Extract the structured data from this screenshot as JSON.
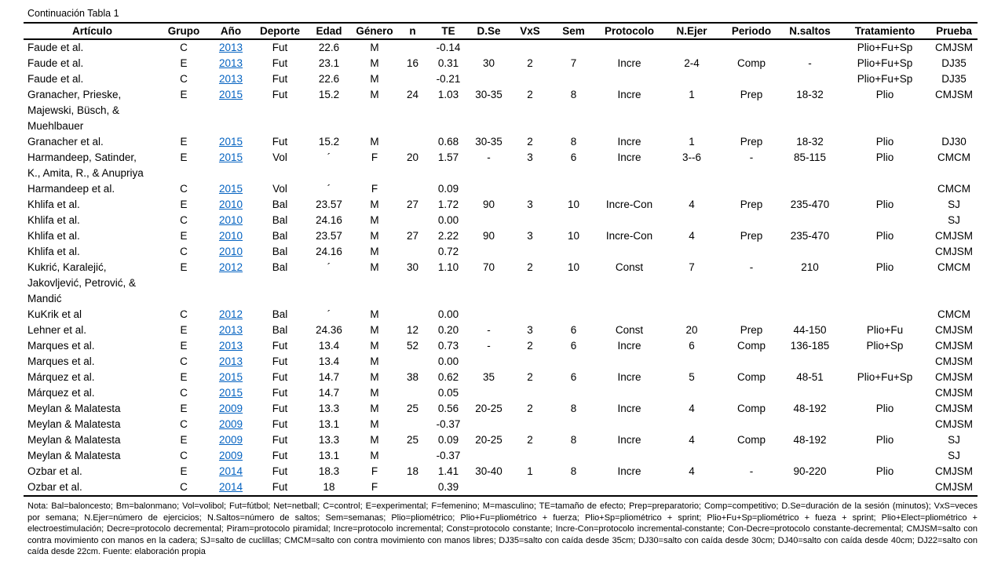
{
  "page": {
    "title": "Continuación Tabla 1"
  },
  "table": {
    "columns": [
      "Artículo",
      "Grupo",
      "Año",
      "Deporte",
      "Edad",
      "Género",
      "n",
      "TE",
      "D.Se",
      "VxS",
      "Sem",
      "Protocolo",
      "N.Ejer",
      "Periodo",
      "N.saltos",
      "Tratamiento",
      "Prueba"
    ],
    "year_link_color": "#0563C1",
    "rows": [
      [
        "Faude et al.",
        "C",
        "2013",
        "Fut",
        "22.6",
        "M",
        "",
        "-0.14",
        "",
        "",
        "",
        "",
        "",
        "",
        "",
        "Plio+Fu+Sp",
        "CMJSM"
      ],
      [
        "Faude et al.",
        "E",
        "2013",
        "Fut",
        "23.1",
        "M",
        "16",
        "0.31",
        "30",
        "2",
        "7",
        "Incre",
        "2-4",
        "Comp",
        "-",
        "Plio+Fu+Sp",
        "DJ35"
      ],
      [
        "Faude et al.",
        "C",
        "2013",
        "Fut",
        "22.6",
        "M",
        "",
        "-0.21",
        "",
        "",
        "",
        "",
        "",
        "",
        "",
        "Plio+Fu+Sp",
        "DJ35"
      ],
      [
        "Granacher, Prieske,\nMajewski, Büsch, &\nMuehlbauer",
        "E",
        "2015",
        "Fut",
        "15.2",
        "M",
        "24",
        "1.03",
        "30-35",
        "2",
        "8",
        "Incre",
        "1",
        "Prep",
        "18-32",
        "Plio",
        "CMJSM"
      ],
      [
        "Granacher et al.",
        "E",
        "2015",
        "Fut",
        "15.2",
        "M",
        "",
        "0.68",
        "30-35",
        "2",
        "8",
        "Incre",
        "1",
        "Prep",
        "18-32",
        "Plio",
        "DJ30"
      ],
      [
        "Harmandeep, Satinder,\nK., Amita, R., & Anupriya",
        "E",
        "2015",
        "Vol",
        "´",
        "F",
        "20",
        "1.57",
        "-",
        "3",
        "6",
        "Incre",
        "3--6",
        "-",
        "85-115",
        "Plio",
        "CMCM"
      ],
      [
        "Harmandeep et al.",
        "C",
        "2015",
        "Vol",
        "´",
        "F",
        "",
        "0.09",
        "",
        "",
        "",
        "",
        "",
        "",
        "",
        "",
        "CMCM"
      ],
      [
        "Khlifa et al.",
        "E",
        "2010",
        "Bal",
        "23.57",
        "M",
        "27",
        "1.72",
        "90",
        "3",
        "10",
        "Incre-Con",
        "4",
        "Prep",
        "235-470",
        "Plio",
        "SJ"
      ],
      [
        "Khlifa et al.",
        "C",
        "2010",
        "Bal",
        "24.16",
        "M",
        "",
        "0.00",
        "",
        "",
        "",
        "",
        "",
        "",
        "",
        "",
        "SJ"
      ],
      [
        "Khlifa et al.",
        "E",
        "2010",
        "Bal",
        "23.57",
        "M",
        "27",
        "2.22",
        "90",
        "3",
        "10",
        "Incre-Con",
        "4",
        "Prep",
        "235-470",
        "Plio",
        "CMJSM"
      ],
      [
        "Khlifa et al.",
        "C",
        "2010",
        "Bal",
        "24.16",
        "M",
        "",
        "0.72",
        "",
        "",
        "",
        "",
        "",
        "",
        "",
        "",
        "CMJSM"
      ],
      [
        "Kukrić, Karalejić,\nJakovljević, Petrović, &\nMandić",
        "E",
        "2012",
        "Bal",
        "´",
        "M",
        "30",
        "1.10",
        "70",
        "2",
        "10",
        "Const",
        "7",
        "-",
        "210",
        "Plio",
        "CMCM"
      ],
      [
        "KuKrik et al",
        "C",
        "2012",
        "Bal",
        "´",
        "M",
        "",
        "0.00",
        "",
        "",
        "",
        "",
        "",
        "",
        "",
        "",
        "CMCM"
      ],
      [
        "Lehner et al.",
        "E",
        "2013",
        "Bal",
        "24.36",
        "M",
        "12",
        "0.20",
        "-",
        "3",
        "6",
        "Const",
        "20",
        "Prep",
        "44-150",
        "Plio+Fu",
        "CMJSM"
      ],
      [
        "Marques et al.",
        "E",
        "2013",
        "Fut",
        "13.4",
        "M",
        "52",
        "0.73",
        "-",
        "2",
        "6",
        "Incre",
        "6",
        "Comp",
        "136-185",
        "Plio+Sp",
        "CMJSM"
      ],
      [
        "Marques et al.",
        "C",
        "2013",
        "Fut",
        "13.4",
        "M",
        "",
        "0.00",
        "",
        "",
        "",
        "",
        "",
        "",
        "",
        "",
        "CMJSM"
      ],
      [
        "Márquez et al.",
        "E",
        "2015",
        "Fut",
        "14.7",
        "M",
        "38",
        "0.62",
        "35",
        "2",
        "6",
        "Incre",
        "5",
        "Comp",
        "48-51",
        "Plio+Fu+Sp",
        "CMJSM"
      ],
      [
        "Márquez et al.",
        "C",
        "2015",
        "Fut",
        "14.7",
        "M",
        "",
        "0.05",
        "",
        "",
        "",
        "",
        "",
        "",
        "",
        "",
        "CMJSM"
      ],
      [
        "Meylan & Malatesta",
        "E",
        "2009",
        "Fut",
        "13.3",
        "M",
        "25",
        "0.56",
        "20-25",
        "2",
        "8",
        "Incre",
        "4",
        "Comp",
        "48-192",
        "Plio",
        "CMJSM"
      ],
      [
        "Meylan & Malatesta",
        "C",
        "2009",
        "Fut",
        "13.1",
        "M",
        "",
        "-0.37",
        "",
        "",
        "",
        "",
        "",
        "",
        "",
        "",
        "CMJSM"
      ],
      [
        "Meylan & Malatesta",
        "E",
        "2009",
        "Fut",
        "13.3",
        "M",
        "25",
        "0.09",
        "20-25",
        "2",
        "8",
        "Incre",
        "4",
        "Comp",
        "48-192",
        "Plio",
        "SJ"
      ],
      [
        "Meylan & Malatesta",
        "C",
        "2009",
        "Fut",
        "13.1",
        "M",
        "",
        "-0.37",
        "",
        "",
        "",
        "",
        "",
        "",
        "",
        "",
        "SJ"
      ],
      [
        "Ozbar et al.",
        "E",
        "2014",
        "Fut",
        "18.3",
        "F",
        "18",
        "1.41",
        "30-40",
        "1",
        "8",
        "Incre",
        "4",
        "-",
        "90-220",
        "Plio",
        "CMJSM"
      ],
      [
        "Ozbar et al.",
        "C",
        "2014",
        "Fut",
        "18",
        "F",
        "",
        "0.39",
        "",
        "",
        "",
        "",
        "",
        "",
        "",
        "",
        "CMJSM"
      ]
    ]
  },
  "note": {
    "text": "Nota: Bal=baloncesto; Bm=balonmano; Vol=volibol; Fut=fútbol; Net=netball; C=control; E=experimental; F=femenino; M=masculino; TE=tamaño de efecto; Prep=preparatorio; Comp=competitivo; D.Se=duración de la sesión (minutos); VxS=veces por semana; N.Ejer=número de ejercicios; N.Saltos=número de saltos; Sem=semanas; Plio=pliométrico; Plio+Fu=pliométrico + fuerza; Plio+Sp=pliométrico + sprint; Plio+Fu+Sp=pliométrico + fueza + sprint; Plio+Elect=pliométrico + electroestimulación; Decre=protocolo decremental; Piram=protocolo piramidal; Incre=protocolo incremental; Const=protocolo constante; Incre-Con=protocolo incremental-constante; Con-Decre=protocolo constante-decremental; CMJSM=salto con contra movimiento con manos en la cadera; SJ=salto de cuclillas; CMCM=salto con contra movimiento con manos libres; DJ35=salto con caída desde 35cm; DJ30=salto con caída desde 30cm; DJ40=salto con caída desde 40cm; DJ22=salto con caída desde 22cm. Fuente: elaboración propia"
  }
}
